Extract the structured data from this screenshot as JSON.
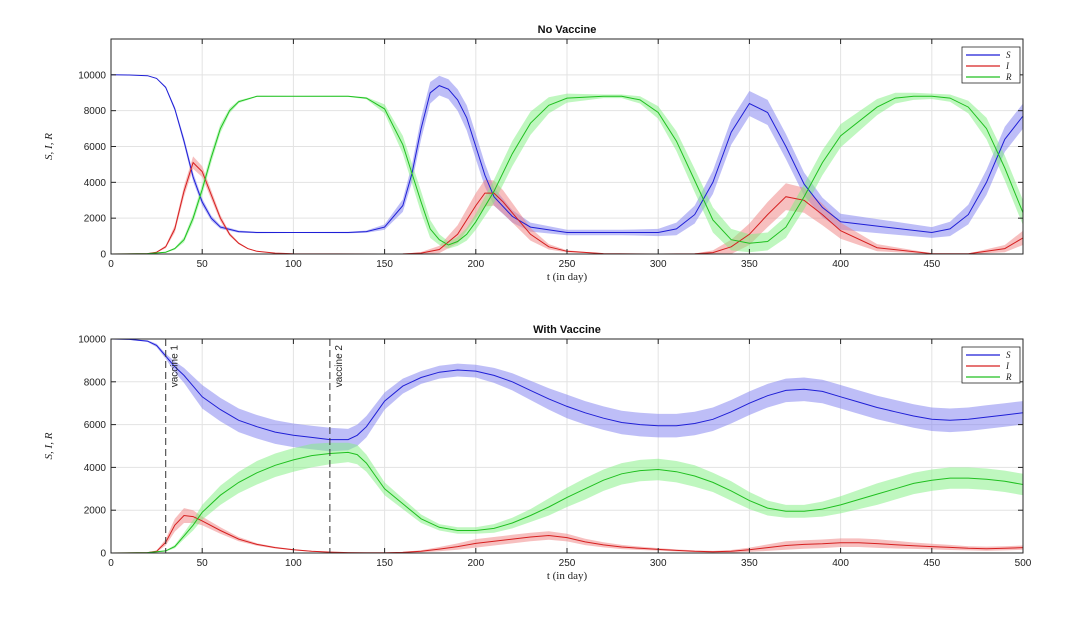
{
  "chart_data": [
    {
      "type": "line",
      "title": "No Vaccine",
      "xlabel": "t (in day)",
      "ylabel": "S, I, R",
      "xlim": [
        0,
        500
      ],
      "ylim": [
        0,
        12000
      ],
      "xticks": [
        0,
        50,
        100,
        150,
        200,
        250,
        300,
        350,
        400,
        450
      ],
      "yticks": [
        0,
        2000,
        4000,
        6000,
        8000,
        10000
      ],
      "grid": true,
      "legend_position": "top-right",
      "confidence_bands": true,
      "series": [
        {
          "name": "S",
          "color": "#1f1fd6",
          "band_color": "#7d7df0",
          "x": [
            0,
            10,
            20,
            25,
            30,
            35,
            40,
            45,
            50,
            55,
            60,
            70,
            80,
            100,
            130,
            140,
            150,
            160,
            165,
            170,
            175,
            180,
            185,
            190,
            195,
            200,
            205,
            210,
            220,
            230,
            250,
            280,
            300,
            310,
            320,
            330,
            340,
            350,
            360,
            370,
            380,
            390,
            400,
            450,
            460,
            470,
            480,
            490,
            500
          ],
          "y": [
            10000,
            9990,
            9950,
            9800,
            9300,
            8100,
            6300,
            4300,
            2900,
            2000,
            1500,
            1250,
            1200,
            1200,
            1200,
            1250,
            1500,
            2700,
            4500,
            7000,
            9000,
            9400,
            9200,
            8600,
            7600,
            6000,
            4400,
            3200,
            2100,
            1500,
            1200,
            1200,
            1200,
            1400,
            2200,
            4000,
            6800,
            8400,
            7900,
            6000,
            3900,
            2600,
            1800,
            1200,
            1400,
            2200,
            4000,
            6400,
            7700
          ],
          "band": [
            0,
            0,
            10,
            20,
            60,
            120,
            200,
            250,
            200,
            150,
            100,
            60,
            40,
            30,
            40,
            60,
            150,
            350,
            500,
            600,
            600,
            550,
            550,
            600,
            700,
            700,
            650,
            500,
            350,
            250,
            150,
            150,
            200,
            350,
            500,
            650,
            700,
            700,
            700,
            700,
            650,
            550,
            450,
            300,
            400,
            550,
            700,
            700,
            700
          ]
        },
        {
          "name": "I",
          "color": "#d62020",
          "band_color": "#f08080",
          "x": [
            0,
            20,
            25,
            30,
            35,
            40,
            45,
            50,
            55,
            60,
            65,
            70,
            75,
            80,
            90,
            100,
            150,
            160,
            170,
            180,
            190,
            200,
            205,
            210,
            215,
            220,
            230,
            240,
            250,
            270,
            300,
            320,
            330,
            340,
            350,
            360,
            370,
            380,
            390,
            400,
            420,
            450,
            470,
            490,
            500
          ],
          "y": [
            0,
            20,
            100,
            400,
            1400,
            3500,
            5100,
            4600,
            3300,
            2000,
            1100,
            600,
            300,
            150,
            50,
            10,
            0,
            5,
            50,
            250,
            1100,
            2700,
            3400,
            3400,
            2900,
            2300,
            1100,
            400,
            150,
            20,
            0,
            10,
            80,
            400,
            1100,
            2200,
            3200,
            3000,
            2200,
            1300,
            350,
            20,
            10,
            300,
            900
          ],
          "band": [
            0,
            10,
            30,
            80,
            200,
            300,
            350,
            300,
            250,
            180,
            100,
            60,
            30,
            15,
            5,
            0,
            0,
            10,
            60,
            200,
            500,
            700,
            750,
            700,
            650,
            550,
            350,
            150,
            60,
            10,
            0,
            20,
            120,
            400,
            600,
            700,
            750,
            700,
            600,
            450,
            200,
            20,
            20,
            200,
            400
          ]
        },
        {
          "name": "R",
          "color": "#20c020",
          "band_color": "#7ff07f",
          "x": [
            0,
            20,
            30,
            35,
            40,
            45,
            50,
            55,
            60,
            65,
            70,
            80,
            100,
            130,
            140,
            150,
            160,
            170,
            175,
            180,
            185,
            190,
            195,
            200,
            210,
            220,
            230,
            240,
            250,
            270,
            280,
            290,
            300,
            310,
            320,
            330,
            340,
            350,
            360,
            370,
            380,
            390,
            400,
            420,
            430,
            440,
            450,
            460,
            470,
            480,
            490,
            500
          ],
          "y": [
            0,
            20,
            100,
            300,
            800,
            2000,
            3600,
            5400,
            7000,
            8000,
            8500,
            8800,
            8800,
            8800,
            8700,
            8100,
            6100,
            2900,
            1400,
            800,
            500,
            700,
            1100,
            1800,
            3500,
            5600,
            7300,
            8300,
            8700,
            8800,
            8800,
            8600,
            7900,
            6300,
            4100,
            1900,
            800,
            600,
            700,
            1500,
            3200,
            5100,
            6600,
            8200,
            8700,
            8800,
            8800,
            8700,
            8200,
            7000,
            4800,
            2300
          ],
          "band": [
            0,
            0,
            20,
            60,
            150,
            250,
            300,
            300,
            250,
            150,
            80,
            30,
            20,
            30,
            60,
            250,
            500,
            600,
            500,
            300,
            200,
            250,
            350,
            450,
            650,
            700,
            650,
            450,
            250,
            100,
            100,
            200,
            350,
            550,
            650,
            700,
            600,
            500,
            500,
            600,
            700,
            700,
            650,
            450,
            300,
            200,
            150,
            200,
            350,
            600,
            700,
            700
          ]
        }
      ]
    },
    {
      "type": "line",
      "title": "With Vaccine",
      "xlabel": "t (in day)",
      "ylabel": "S, I, R",
      "xlim": [
        0,
        500
      ],
      "ylim": [
        0,
        10000
      ],
      "xticks": [
        0,
        50,
        100,
        150,
        200,
        250,
        300,
        350,
        400,
        450,
        500
      ],
      "yticks": [
        0,
        2000,
        4000,
        6000,
        8000,
        10000
      ],
      "grid": true,
      "legend_position": "top-right",
      "confidence_bands": true,
      "annotations": [
        {
          "x": 30,
          "label": "vaccine 1"
        },
        {
          "x": 120,
          "label": "vaccine 2"
        }
      ],
      "series": [
        {
          "name": "S",
          "color": "#1f1fd6",
          "band_color": "#7d7df0",
          "x": [
            0,
            10,
            20,
            25,
            30,
            35,
            40,
            45,
            50,
            60,
            70,
            80,
            90,
            100,
            110,
            120,
            130,
            135,
            140,
            145,
            150,
            160,
            170,
            180,
            190,
            200,
            210,
            220,
            230,
            240,
            250,
            260,
            270,
            280,
            290,
            300,
            310,
            320,
            330,
            340,
            350,
            360,
            370,
            380,
            390,
            400,
            410,
            420,
            430,
            440,
            450,
            460,
            470,
            480,
            490,
            500
          ],
          "y": [
            10000,
            9980,
            9900,
            9700,
            9200,
            8700,
            8300,
            7800,
            7300,
            6700,
            6200,
            5900,
            5650,
            5500,
            5400,
            5300,
            5300,
            5500,
            5900,
            6500,
            7100,
            7800,
            8200,
            8450,
            8550,
            8500,
            8300,
            8000,
            7600,
            7200,
            6850,
            6550,
            6300,
            6100,
            6000,
            5950,
            5950,
            6050,
            6250,
            6600,
            7000,
            7350,
            7600,
            7650,
            7550,
            7300,
            7050,
            6800,
            6600,
            6400,
            6250,
            6200,
            6250,
            6350,
            6450,
            6550
          ],
          "band": [
            0,
            10,
            40,
            80,
            120,
            250,
            350,
            450,
            550,
            550,
            550,
            550,
            550,
            550,
            550,
            550,
            500,
            500,
            500,
            450,
            400,
            350,
            300,
            300,
            300,
            300,
            350,
            400,
            450,
            500,
            550,
            550,
            550,
            550,
            550,
            550,
            550,
            550,
            550,
            550,
            550,
            550,
            550,
            550,
            550,
            550,
            550,
            550,
            550,
            550,
            550,
            550,
            550,
            550,
            550,
            550
          ]
        },
        {
          "name": "I",
          "color": "#d62020",
          "band_color": "#f08080",
          "x": [
            0,
            20,
            25,
            30,
            35,
            40,
            45,
            50,
            60,
            70,
            80,
            90,
            100,
            110,
            120,
            130,
            140,
            150,
            160,
            170,
            180,
            190,
            200,
            210,
            220,
            230,
            240,
            250,
            260,
            270,
            280,
            290,
            300,
            310,
            320,
            330,
            340,
            350,
            360,
            370,
            380,
            390,
            400,
            410,
            420,
            430,
            440,
            450,
            460,
            470,
            480,
            490,
            500
          ],
          "y": [
            0,
            20,
            80,
            500,
            1300,
            1750,
            1700,
            1500,
            1050,
            650,
            400,
            250,
            150,
            80,
            40,
            20,
            10,
            10,
            30,
            80,
            180,
            300,
            450,
            550,
            650,
            750,
            820,
            720,
            520,
            380,
            280,
            220,
            170,
            120,
            80,
            60,
            80,
            150,
            250,
            350,
            400,
            430,
            480,
            480,
            440,
            390,
            340,
            300,
            260,
            220,
            200,
            220,
            250
          ],
          "band": [
            0,
            10,
            40,
            150,
            300,
            350,
            300,
            200,
            150,
            100,
            60,
            40,
            30,
            20,
            10,
            10,
            10,
            10,
            20,
            50,
            100,
            150,
            200,
            200,
            200,
            200,
            200,
            180,
            150,
            120,
            100,
            80,
            60,
            50,
            40,
            40,
            60,
            100,
            150,
            200,
            200,
            200,
            200,
            200,
            200,
            180,
            150,
            130,
            120,
            100,
            100,
            100,
            100
          ]
        },
        {
          "name": "R",
          "color": "#20c020",
          "band_color": "#7ff07f",
          "x": [
            0,
            20,
            30,
            35,
            40,
            45,
            50,
            60,
            70,
            80,
            90,
            100,
            110,
            120,
            130,
            135,
            140,
            145,
            150,
            160,
            170,
            180,
            190,
            200,
            210,
            220,
            230,
            240,
            250,
            260,
            270,
            280,
            290,
            300,
            310,
            320,
            330,
            340,
            350,
            360,
            370,
            380,
            390,
            400,
            410,
            420,
            430,
            440,
            450,
            460,
            470,
            480,
            490,
            500
          ],
          "y": [
            0,
            20,
            100,
            300,
            800,
            1300,
            1900,
            2700,
            3300,
            3750,
            4100,
            4350,
            4550,
            4650,
            4700,
            4600,
            4200,
            3600,
            3000,
            2300,
            1600,
            1200,
            1050,
            1050,
            1150,
            1400,
            1750,
            2150,
            2600,
            3000,
            3400,
            3700,
            3850,
            3900,
            3800,
            3600,
            3300,
            2900,
            2450,
            2100,
            1950,
            1950,
            2050,
            2250,
            2500,
            2750,
            3000,
            3250,
            3400,
            3500,
            3500,
            3450,
            3350,
            3200
          ],
          "band": [
            0,
            10,
            30,
            80,
            150,
            250,
            350,
            450,
            500,
            550,
            550,
            550,
            550,
            500,
            450,
            450,
            400,
            350,
            300,
            250,
            200,
            150,
            150,
            150,
            200,
            250,
            300,
            400,
            450,
            500,
            500,
            500,
            500,
            500,
            500,
            500,
            450,
            450,
            400,
            350,
            300,
            300,
            350,
            400,
            450,
            500,
            500,
            500,
            500,
            500,
            500,
            500,
            500,
            500
          ]
        }
      ]
    }
  ]
}
